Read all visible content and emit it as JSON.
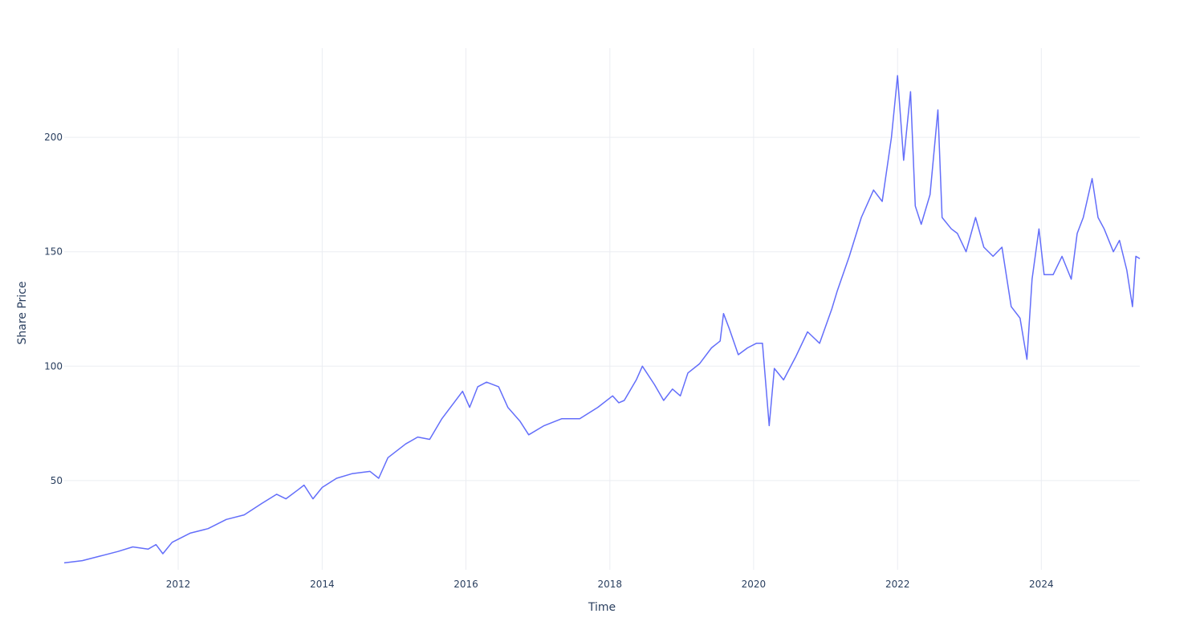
{
  "chart_data": {
    "type": "line",
    "xlabel": "Time",
    "ylabel": "Share Price",
    "x_tick_labels": [
      "2012",
      "2014",
      "2016",
      "2018",
      "2020",
      "2022",
      "2024"
    ],
    "y_tick_labels": [
      "50",
      "100",
      "150",
      "200"
    ],
    "xlim": [
      "2010-06-01",
      "2025-05-15"
    ],
    "ylim": [
      11,
      239
    ],
    "grid": true,
    "line_color": "#636efa",
    "series": [
      {
        "x": [
          "2010-06-01",
          "2010-09-01",
          "2010-12-01",
          "2011-03-01",
          "2011-05-15",
          "2011-08-01",
          "2011-09-10",
          "2011-10-15",
          "2011-12-01",
          "2012-03-01",
          "2012-06-01",
          "2012-09-01",
          "2012-12-01",
          "2013-03-01",
          "2013-05-15",
          "2013-07-01",
          "2013-09-01",
          "2013-10-01",
          "2013-11-15",
          "2014-01-01",
          "2014-03-15",
          "2014-06-01",
          "2014-09-01",
          "2014-10-15",
          "2014-12-01",
          "2015-03-01",
          "2015-05-01",
          "2015-07-01",
          "2015-09-01",
          "2015-11-01",
          "2015-12-15",
          "2016-01-20",
          "2016-03-01",
          "2016-04-15",
          "2016-06-15",
          "2016-08-01",
          "2016-10-01",
          "2016-11-15",
          "2017-02-01",
          "2017-05-01",
          "2017-08-01",
          "2017-11-01",
          "2018-01-15",
          "2018-02-15",
          "2018-03-15",
          "2018-05-15",
          "2018-06-15",
          "2018-08-15",
          "2018-10-01",
          "2018-11-15",
          "2018-12-25",
          "2019-02-01",
          "2019-04-01",
          "2019-06-01",
          "2019-07-15",
          "2019-08-01",
          "2019-09-01",
          "2019-10-15",
          "2019-12-01",
          "2020-01-15",
          "2020-02-15",
          "2020-03-20",
          "2020-04-15",
          "2020-06-01",
          "2020-08-01",
          "2020-10-01",
          "2020-12-01",
          "2021-02-01",
          "2021-03-01",
          "2021-05-01",
          "2021-07-01",
          "2021-09-01",
          "2021-10-15",
          "2021-12-01",
          "2022-01-01",
          "2022-02-01",
          "2022-03-08",
          "2022-04-01",
          "2022-05-01",
          "2022-06-15",
          "2022-07-25",
          "2022-08-15",
          "2022-10-01",
          "2022-11-01",
          "2022-12-15",
          "2023-02-01",
          "2023-03-15",
          "2023-05-01",
          "2023-06-15",
          "2023-08-01",
          "2023-09-15",
          "2023-10-20",
          "2023-11-15",
          "2023-12-20",
          "2024-01-15",
          "2024-03-01",
          "2024-04-15",
          "2024-06-01",
          "2024-07-01",
          "2024-08-01",
          "2024-09-15",
          "2024-10-15",
          "2024-11-15",
          "2025-01-01",
          "2025-02-01",
          "2025-03-10",
          "2025-04-08",
          "2025-04-25",
          "2025-05-15"
        ],
        "y": [
          14,
          15,
          17,
          19,
          21,
          20,
          22,
          18,
          23,
          27,
          29,
          33,
          35,
          40,
          44,
          42,
          46,
          48,
          42,
          47,
          51,
          53,
          54,
          51,
          60,
          66,
          69,
          68,
          77,
          84,
          89,
          82,
          91,
          93,
          91,
          82,
          76,
          70,
          74,
          77,
          77,
          82,
          87,
          84,
          85,
          94,
          100,
          92,
          85,
          90,
          87,
          97,
          101,
          108,
          111,
          123,
          116,
          105,
          108,
          110,
          110,
          74,
          99,
          94,
          104,
          115,
          110,
          125,
          133,
          148,
          165,
          177,
          172,
          200,
          227,
          190,
          220,
          170,
          162,
          175,
          212,
          165,
          160,
          158,
          150,
          165,
          152,
          148,
          152,
          126,
          121,
          103,
          138,
          160,
          140,
          140,
          148,
          138,
          158,
          165,
          182,
          165,
          160,
          150,
          155,
          142,
          126,
          148,
          147
        ]
      }
    ]
  }
}
